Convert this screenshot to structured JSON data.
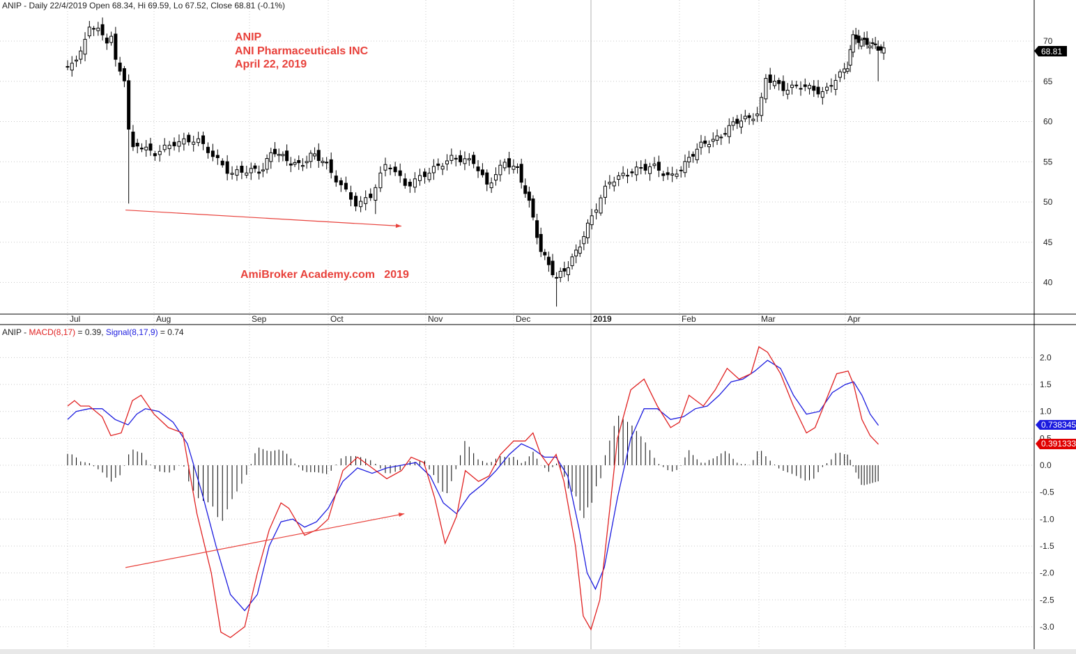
{
  "price_header": {
    "prefix": "ANIP - Daily 22/4/2019 Open 68.34, Hi 69.59, Lo 67.52, Close 68.81 (-0.1%)"
  },
  "annotations": {
    "symbol": "ANIP",
    "company": "ANI Pharmaceuticals INC",
    "date": "April 22, 2019",
    "watermark": "AmiBroker Academy.com   2019"
  },
  "macd_header": {
    "prefix": "ANIP - ",
    "macd_label": "MACD(8,17)",
    "macd_value": " = 0.39, ",
    "signal_label": "Signal(8,17,9)",
    "signal_value": " = 0.74"
  },
  "colors": {
    "macd": "#e02020",
    "signal": "#1a1adf",
    "candle": "#000000",
    "grid": "#c8c8c8",
    "annotation": "#e8413b",
    "last_price_bg": "#000000",
    "signal_badge_bg": "#1a1adf",
    "macd_badge_bg": "#e00000"
  },
  "badges": {
    "last_price": "68.81",
    "signal": "0.738345",
    "macd": "0.391333"
  },
  "chart_data": [
    {
      "type": "candlestick",
      "title": "ANIP - Daily 22/4/2019",
      "ylim": [
        36,
        74
      ],
      "y_ticks": [
        40,
        45,
        50,
        55,
        60,
        65,
        70
      ],
      "x_ticks": [
        "Jul",
        "Aug",
        "Sep",
        "Oct",
        "Nov",
        "Dec",
        "2019",
        "Feb",
        "Mar",
        "Apr"
      ],
      "grid": true,
      "last": {
        "open": 68.34,
        "high": 69.59,
        "low": 67.52,
        "close": 68.81
      },
      "close_path": [
        {
          "t": 0,
          "v": 66.5
        },
        {
          "t": 0.06,
          "v": 67.5
        },
        {
          "t": 0.13,
          "v": 68.3
        },
        {
          "t": 0.18,
          "v": 69.0
        },
        {
          "t": 0.25,
          "v": 72.0
        },
        {
          "t": 0.34,
          "v": 71.5
        },
        {
          "t": 0.45,
          "v": 70.0
        },
        {
          "t": 0.5,
          "v": 71.0
        },
        {
          "t": 0.55,
          "v": 67.5
        },
        {
          "t": 0.62,
          "v": 66.0
        },
        {
          "t": 0.68,
          "v": 65.0
        },
        {
          "t": 0.72,
          "v": 56.0
        },
        {
          "t": 0.8,
          "v": 57.2
        },
        {
          "t": 1.0,
          "v": 56.0
        },
        {
          "t": 1.2,
          "v": 57.3
        },
        {
          "t": 1.45,
          "v": 57.8
        },
        {
          "t": 1.6,
          "v": 56.0
        },
        {
          "t": 1.8,
          "v": 53.5
        },
        {
          "t": 2.0,
          "v": 54.0
        },
        {
          "t": 2.15,
          "v": 53.8
        },
        {
          "t": 2.3,
          "v": 56.5
        },
        {
          "t": 2.5,
          "v": 55.0
        },
        {
          "t": 2.65,
          "v": 54.5
        },
        {
          "t": 2.8,
          "v": 56.0
        },
        {
          "t": 2.95,
          "v": 55.0
        },
        {
          "t": 3.1,
          "v": 52.5
        },
        {
          "t": 3.3,
          "v": 49.5
        },
        {
          "t": 3.45,
          "v": 51.0
        },
        {
          "t": 3.6,
          "v": 55.0
        },
        {
          "t": 3.8,
          "v": 52.0
        },
        {
          "t": 4.0,
          "v": 53.5
        },
        {
          "t": 4.3,
          "v": 55.5
        },
        {
          "t": 4.55,
          "v": 55.0
        },
        {
          "t": 4.7,
          "v": 52.0
        },
        {
          "t": 4.9,
          "v": 55.0
        },
        {
          "t": 5.05,
          "v": 54.0
        },
        {
          "t": 5.2,
          "v": 50.0
        },
        {
          "t": 5.35,
          "v": 44.0
        },
        {
          "t": 5.55,
          "v": 40.5
        },
        {
          "t": 5.7,
          "v": 42.0
        },
        {
          "t": 5.85,
          "v": 44.5
        },
        {
          "t": 6.0,
          "v": 48.0
        },
        {
          "t": 6.2,
          "v": 52.5
        },
        {
          "t": 6.5,
          "v": 54.0
        },
        {
          "t": 6.7,
          "v": 54.5
        },
        {
          "t": 6.9,
          "v": 53.0
        },
        {
          "t": 7.05,
          "v": 54.5
        },
        {
          "t": 7.25,
          "v": 57.0
        },
        {
          "t": 7.5,
          "v": 58.0
        },
        {
          "t": 7.7,
          "v": 60.0
        },
        {
          "t": 7.9,
          "v": 60.5
        },
        {
          "t": 8.0,
          "v": 61.0
        },
        {
          "t": 8.08,
          "v": 65.5
        },
        {
          "t": 8.3,
          "v": 64.0
        },
        {
          "t": 8.5,
          "v": 64.5
        },
        {
          "t": 8.75,
          "v": 63.5
        },
        {
          "t": 8.9,
          "v": 65.5
        },
        {
          "t": 9.05,
          "v": 67.0
        },
        {
          "t": 9.12,
          "v": 70.5
        },
        {
          "t": 9.3,
          "v": 70.0
        },
        {
          "t": 9.5,
          "v": 69.5
        },
        {
          "t": 9.7,
          "v": 68.8
        }
      ],
      "spikes": [
        {
          "t": 0.72,
          "low": 49.8
        },
        {
          "t": 3.48,
          "low": 48.5
        },
        {
          "t": 5.55,
          "low": 37.0
        },
        {
          "t": 9.62,
          "low": 65.0
        }
      ],
      "trendline": [
        {
          "t": 0.67,
          "v": 49.0
        },
        {
          "t": 3.75,
          "v": 47.0
        }
      ]
    },
    {
      "type": "line",
      "title": "MACD(8,17) / Signal(8,17,9)",
      "ylim": [
        -3.2,
        2.3
      ],
      "y_ticks": [
        -3.0,
        -2.5,
        -2.0,
        -1.5,
        -1.0,
        -0.5,
        0.0,
        0.5,
        1.0,
        1.5,
        2.0
      ],
      "grid": true,
      "series": [
        {
          "name": "MACD(8,17)",
          "color": "#e02020",
          "last": 0.39,
          "points": [
            {
              "t": 0,
              "v": 1.1
            },
            {
              "t": 0.08,
              "v": 1.2
            },
            {
              "t": 0.15,
              "v": 1.1
            },
            {
              "t": 0.25,
              "v": 1.1
            },
            {
              "t": 0.4,
              "v": 0.9
            },
            {
              "t": 0.5,
              "v": 0.55
            },
            {
              "t": 0.62,
              "v": 0.6
            },
            {
              "t": 0.75,
              "v": 1.2
            },
            {
              "t": 0.85,
              "v": 1.3
            },
            {
              "t": 1.0,
              "v": 0.95
            },
            {
              "t": 1.15,
              "v": 0.7
            },
            {
              "t": 1.3,
              "v": 0.6
            },
            {
              "t": 1.45,
              "v": -0.9
            },
            {
              "t": 1.6,
              "v": -2.0
            },
            {
              "t": 1.7,
              "v": -3.1
            },
            {
              "t": 1.8,
              "v": -3.2
            },
            {
              "t": 1.95,
              "v": -3.0
            },
            {
              "t": 2.1,
              "v": -2.0
            },
            {
              "t": 2.25,
              "v": -1.2
            },
            {
              "t": 2.4,
              "v": -0.7
            },
            {
              "t": 2.5,
              "v": -0.8
            },
            {
              "t": 2.7,
              "v": -1.3
            },
            {
              "t": 2.85,
              "v": -1.2
            },
            {
              "t": 3.0,
              "v": -1.0
            },
            {
              "t": 3.15,
              "v": -0.1
            },
            {
              "t": 3.3,
              "v": 0.15
            },
            {
              "t": 3.45,
              "v": -0.05
            },
            {
              "t": 3.6,
              "v": -0.25
            },
            {
              "t": 3.75,
              "v": -0.1
            },
            {
              "t": 3.85,
              "v": 0.15
            },
            {
              "t": 3.98,
              "v": 0.05
            },
            {
              "t": 4.1,
              "v": -0.6
            },
            {
              "t": 4.22,
              "v": -1.45
            },
            {
              "t": 4.35,
              "v": -0.95
            },
            {
              "t": 4.45,
              "v": -0.1
            },
            {
              "t": 4.6,
              "v": -0.3
            },
            {
              "t": 4.72,
              "v": -0.2
            },
            {
              "t": 4.85,
              "v": 0.2
            },
            {
              "t": 5.0,
              "v": 0.45
            },
            {
              "t": 5.15,
              "v": 0.45
            },
            {
              "t": 5.25,
              "v": 0.6
            },
            {
              "t": 5.35,
              "v": 0.2
            },
            {
              "t": 5.45,
              "v": 0.0
            },
            {
              "t": 5.55,
              "v": 0.2
            },
            {
              "t": 5.65,
              "v": -0.3
            },
            {
              "t": 5.8,
              "v": -1.5
            },
            {
              "t": 5.9,
              "v": -2.8
            },
            {
              "t": 6.0,
              "v": -3.05
            },
            {
              "t": 6.1,
              "v": -2.5
            },
            {
              "t": 6.2,
              "v": -1.0
            },
            {
              "t": 6.3,
              "v": 0.5
            },
            {
              "t": 6.45,
              "v": 1.4
            },
            {
              "t": 6.6,
              "v": 1.6
            },
            {
              "t": 6.75,
              "v": 1.1
            },
            {
              "t": 6.9,
              "v": 0.7
            },
            {
              "t": 7.0,
              "v": 0.8
            },
            {
              "t": 7.12,
              "v": 1.3
            },
            {
              "t": 7.3,
              "v": 1.1
            },
            {
              "t": 7.45,
              "v": 1.4
            },
            {
              "t": 7.6,
              "v": 1.8
            },
            {
              "t": 7.75,
              "v": 1.6
            },
            {
              "t": 7.9,
              "v": 1.7
            },
            {
              "t": 8.0,
              "v": 2.2
            },
            {
              "t": 8.1,
              "v": 2.1
            },
            {
              "t": 8.25,
              "v": 1.7
            },
            {
              "t": 8.4,
              "v": 1.1
            },
            {
              "t": 8.55,
              "v": 0.6
            },
            {
              "t": 8.65,
              "v": 0.7
            },
            {
              "t": 8.75,
              "v": 1.1
            },
            {
              "t": 8.9,
              "v": 1.7
            },
            {
              "t": 9.05,
              "v": 1.75
            },
            {
              "t": 9.15,
              "v": 1.5
            },
            {
              "t": 9.3,
              "v": 0.85
            },
            {
              "t": 9.45,
              "v": 0.55
            },
            {
              "t": 9.6,
              "v": 0.39
            }
          ]
        },
        {
          "name": "Signal(8,17,9)",
          "color": "#1a1adf",
          "last": 0.74,
          "points": [
            {
              "t": 0,
              "v": 0.85
            },
            {
              "t": 0.1,
              "v": 1.0
            },
            {
              "t": 0.25,
              "v": 1.05
            },
            {
              "t": 0.4,
              "v": 1.05
            },
            {
              "t": 0.55,
              "v": 0.85
            },
            {
              "t": 0.7,
              "v": 0.75
            },
            {
              "t": 0.8,
              "v": 0.95
            },
            {
              "t": 0.9,
              "v": 1.05
            },
            {
              "t": 1.05,
              "v": 1.0
            },
            {
              "t": 1.2,
              "v": 0.8
            },
            {
              "t": 1.35,
              "v": 0.4
            },
            {
              "t": 1.5,
              "v": -0.5
            },
            {
              "t": 1.65,
              "v": -1.5
            },
            {
              "t": 1.8,
              "v": -2.4
            },
            {
              "t": 1.95,
              "v": -2.7
            },
            {
              "t": 2.1,
              "v": -2.4
            },
            {
              "t": 2.25,
              "v": -1.5
            },
            {
              "t": 2.4,
              "v": -1.05
            },
            {
              "t": 2.55,
              "v": -1.0
            },
            {
              "t": 2.7,
              "v": -1.15
            },
            {
              "t": 2.85,
              "v": -1.05
            },
            {
              "t": 3.0,
              "v": -0.8
            },
            {
              "t": 3.15,
              "v": -0.3
            },
            {
              "t": 3.3,
              "v": -0.05
            },
            {
              "t": 3.45,
              "v": -0.15
            },
            {
              "t": 3.6,
              "v": -0.05
            },
            {
              "t": 3.75,
              "v": 0.0
            },
            {
              "t": 3.9,
              "v": 0.05
            },
            {
              "t": 4.05,
              "v": -0.2
            },
            {
              "t": 4.2,
              "v": -0.7
            },
            {
              "t": 4.35,
              "v": -0.9
            },
            {
              "t": 4.5,
              "v": -0.55
            },
            {
              "t": 4.65,
              "v": -0.35
            },
            {
              "t": 4.8,
              "v": -0.1
            },
            {
              "t": 4.95,
              "v": 0.2
            },
            {
              "t": 5.1,
              "v": 0.4
            },
            {
              "t": 5.25,
              "v": 0.3
            },
            {
              "t": 5.4,
              "v": 0.15
            },
            {
              "t": 5.55,
              "v": 0.15
            },
            {
              "t": 5.7,
              "v": -0.2
            },
            {
              "t": 5.85,
              "v": -1.2
            },
            {
              "t": 5.95,
              "v": -2.0
            },
            {
              "t": 6.05,
              "v": -2.3
            },
            {
              "t": 6.15,
              "v": -1.9
            },
            {
              "t": 6.3,
              "v": -0.6
            },
            {
              "t": 6.45,
              "v": 0.5
            },
            {
              "t": 6.6,
              "v": 1.05
            },
            {
              "t": 6.75,
              "v": 1.05
            },
            {
              "t": 6.9,
              "v": 0.85
            },
            {
              "t": 7.05,
              "v": 0.9
            },
            {
              "t": 7.2,
              "v": 1.05
            },
            {
              "t": 7.35,
              "v": 1.1
            },
            {
              "t": 7.5,
              "v": 1.3
            },
            {
              "t": 7.65,
              "v": 1.55
            },
            {
              "t": 7.8,
              "v": 1.6
            },
            {
              "t": 7.95,
              "v": 1.75
            },
            {
              "t": 8.1,
              "v": 1.95
            },
            {
              "t": 8.25,
              "v": 1.8
            },
            {
              "t": 8.4,
              "v": 1.3
            },
            {
              "t": 8.55,
              "v": 0.95
            },
            {
              "t": 8.7,
              "v": 1.0
            },
            {
              "t": 8.85,
              "v": 1.35
            },
            {
              "t": 9.0,
              "v": 1.5
            },
            {
              "t": 9.15,
              "v": 1.55
            },
            {
              "t": 9.3,
              "v": 1.3
            },
            {
              "t": 9.45,
              "v": 0.95
            },
            {
              "t": 9.6,
              "v": 0.74
            }
          ]
        }
      ],
      "trendline": [
        {
          "t": 0.67,
          "v": -1.9
        },
        {
          "t": 3.78,
          "v": -0.9
        }
      ]
    }
  ]
}
